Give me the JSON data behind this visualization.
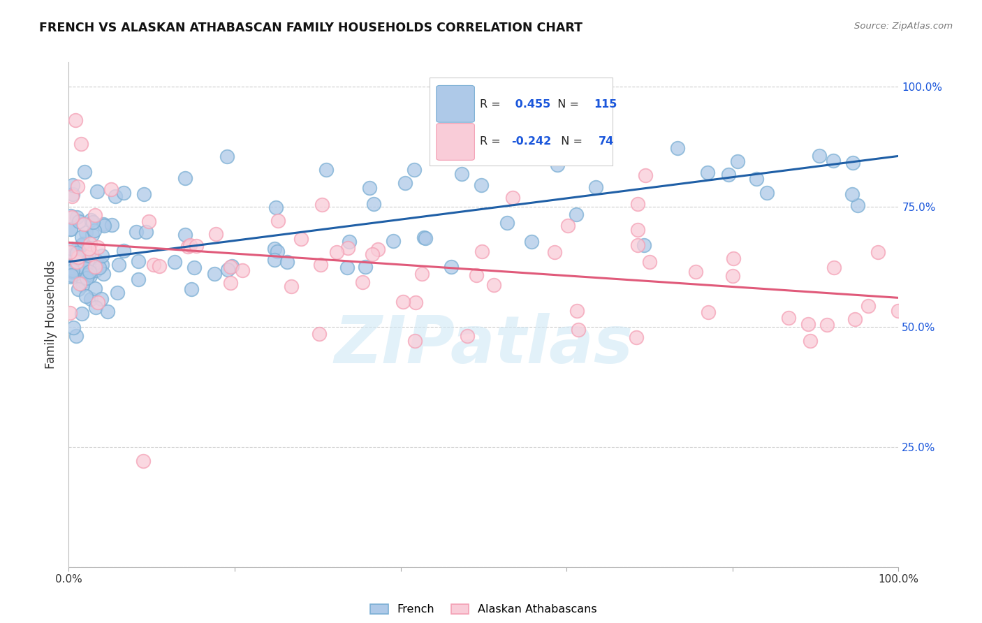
{
  "title": "FRENCH VS ALASKAN ATHABASCAN FAMILY HOUSEHOLDS CORRELATION CHART",
  "source_text": "Source: ZipAtlas.com",
  "ylabel": "Family Households",
  "xlim": [
    0.0,
    1.0
  ],
  "ylim": [
    0.0,
    1.05
  ],
  "french_R": 0.455,
  "french_N": 115,
  "athabascan_R": -0.242,
  "athabascan_N": 74,
  "french_face_color": "#aec9e8",
  "french_edge_color": "#7bafd4",
  "athabascan_face_color": "#f9ccd8",
  "athabascan_edge_color": "#f4a0b5",
  "trendline_french_color": "#1f5fa6",
  "trendline_athabascan_color": "#e05a7a",
  "watermark": "ZIPatlas",
  "watermark_color": "#d0e8f5",
  "legend_R_color": "#1a56db",
  "legend_label_french": "French",
  "legend_label_athabascan": "Alaskan Athabascans",
  "right_tick_color": "#1a56db",
  "grid_color": "#cccccc",
  "french_trend_intercept": 0.635,
  "french_trend_slope": 0.22,
  "athabascan_trend_intercept": 0.675,
  "athabascan_trend_slope": -0.115
}
